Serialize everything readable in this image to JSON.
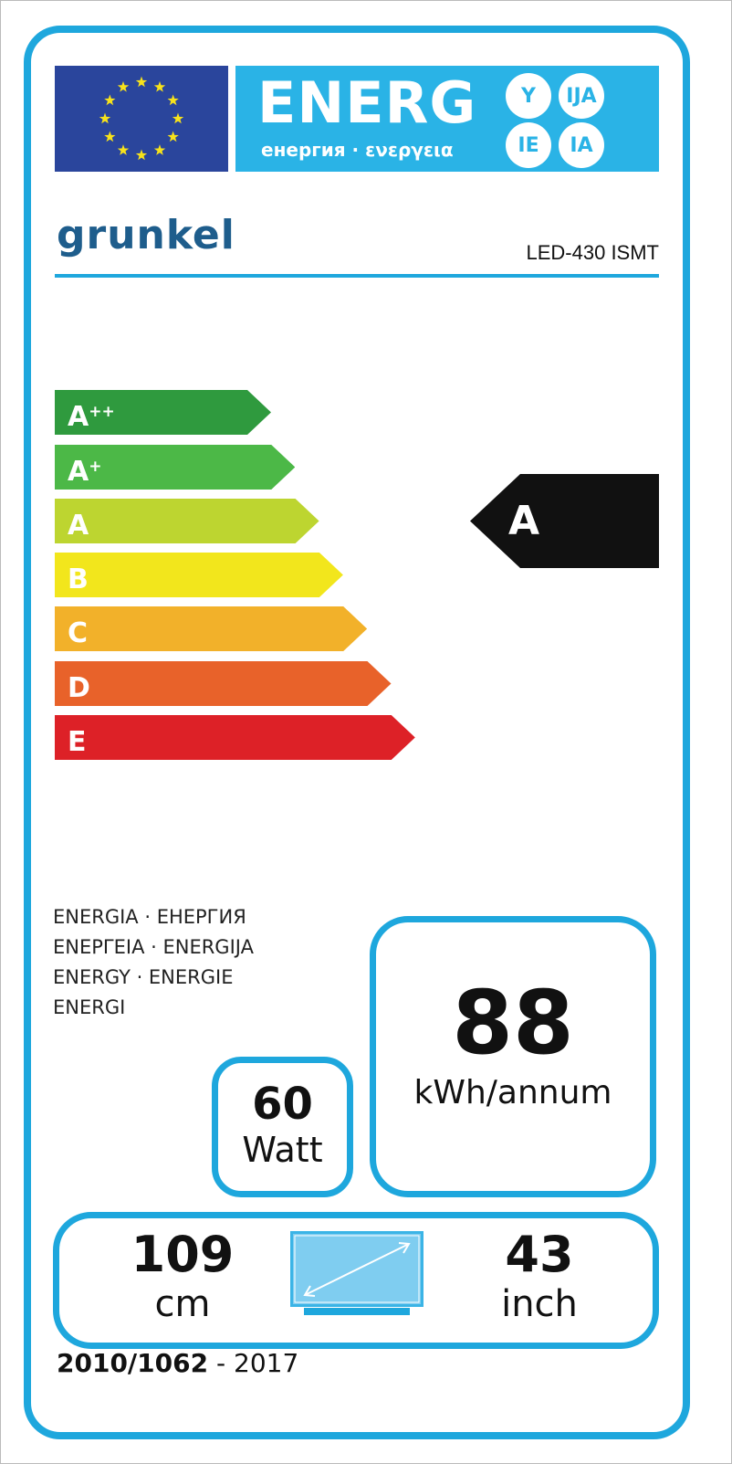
{
  "header": {
    "energy_title": "ENERG",
    "energy_subtitle": "енергия · ενεργεια",
    "language_suffixes": [
      "Y",
      "IJA",
      "IE",
      "IA"
    ],
    "flag_icon": "eu-flag-icon"
  },
  "supplier": {
    "logo_text": "grunkel",
    "model": "LED-430 ISMT"
  },
  "scale": {
    "classes": [
      {
        "base": "A",
        "sup": "++",
        "color": "#2f9a3e"
      },
      {
        "base": "A",
        "sup": "+",
        "color": "#4cb847"
      },
      {
        "base": "A",
        "sup": "",
        "color": "#bdd530"
      },
      {
        "base": "B",
        "sup": "",
        "color": "#f2e61c"
      },
      {
        "base": "C",
        "sup": "",
        "color": "#f2b12a"
      },
      {
        "base": "D",
        "sup": "",
        "color": "#e8622a"
      },
      {
        "base": "E",
        "sup": "",
        "color": "#dd2127"
      }
    ],
    "rating": "A"
  },
  "energy_words": [
    "ENERGIA · ЕНЕРГИЯ",
    "ΕΝΕΡΓΕΙΑ · ENERGIJA",
    "ENERGY · ENERGIE",
    "ENERGI"
  ],
  "consumption": {
    "value": "88",
    "unit": "kWh/annum"
  },
  "power": {
    "value": "60",
    "unit": "Watt"
  },
  "screen": {
    "cm": "109",
    "cm_unit": "cm",
    "inch": "43",
    "inch_unit": "inch"
  },
  "footer": {
    "regulation": "2010/1062",
    "separator": " - ",
    "year": "2017"
  }
}
